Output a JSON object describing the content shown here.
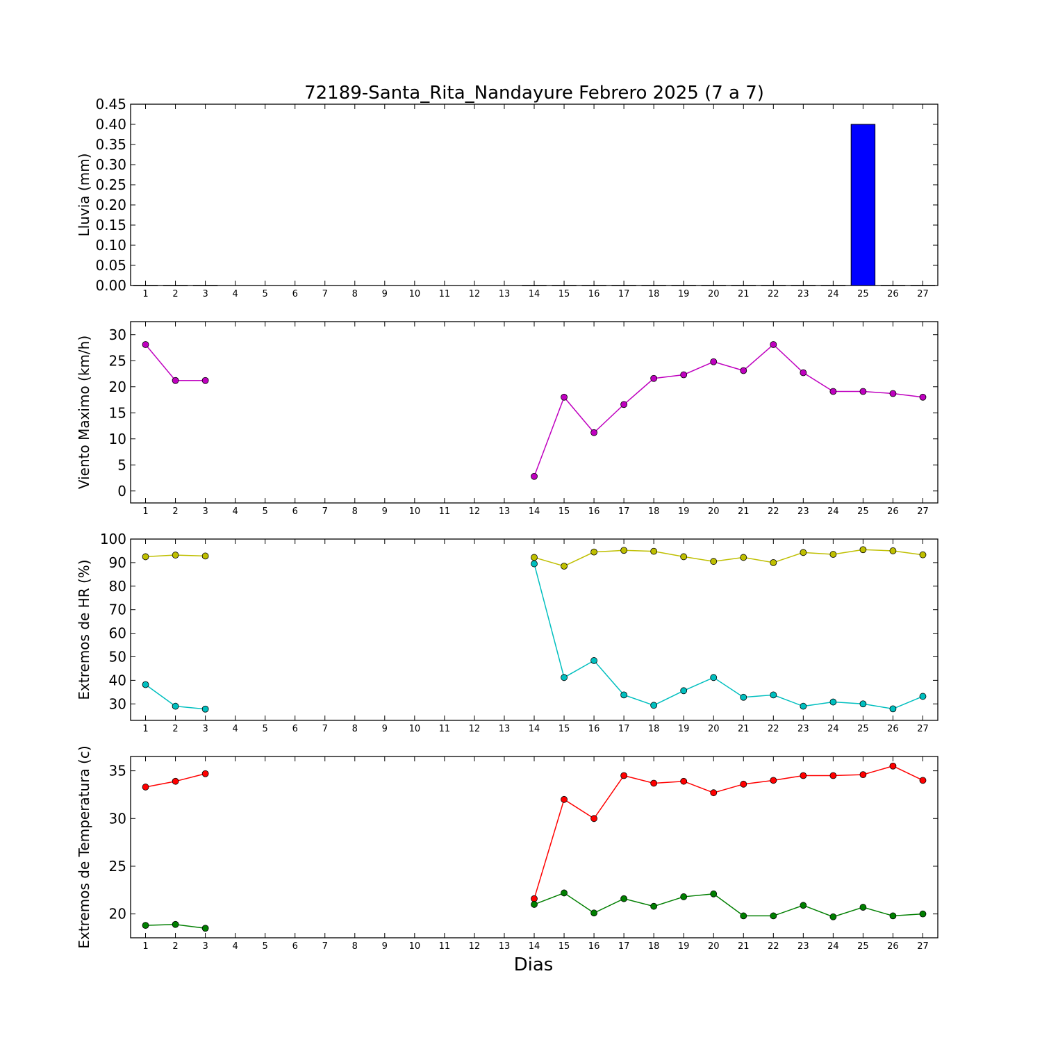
{
  "title": "72189-Santa_Rita_Nandayure Febrero 2025  (7 a 7)",
  "xlabel": "Dias",
  "chart_data": [
    {
      "type": "bar",
      "ylabel": "Lluvia (mm)",
      "xlim": [
        0.5,
        27.5
      ],
      "ylim": [
        0,
        0.45
      ],
      "yticks": [
        "0.00",
        "0.05",
        "0.10",
        "0.15",
        "0.20",
        "0.25",
        "0.30",
        "0.35",
        "0.40",
        "0.45"
      ],
      "ytick_values": [
        0,
        0.05,
        0.1,
        0.15,
        0.2,
        0.25,
        0.3,
        0.35,
        0.4,
        0.45
      ],
      "x": [
        1,
        2,
        3,
        14,
        15,
        16,
        17,
        18,
        19,
        20,
        21,
        22,
        23,
        24,
        25,
        26,
        27
      ],
      "values": [
        0,
        0,
        0,
        0,
        0,
        0,
        0,
        0,
        0,
        0,
        0,
        0,
        0,
        0,
        0.4,
        0,
        0
      ],
      "color": "#0000ff"
    },
    {
      "type": "line",
      "ylabel": "Viento Maximo (km/h)",
      "xlim": [
        0.5,
        27.5
      ],
      "ylim": [
        -2.3,
        32.5
      ],
      "yticks": [
        "0",
        "5",
        "10",
        "15",
        "20",
        "25",
        "30"
      ],
      "ytick_values": [
        0,
        5,
        10,
        15,
        20,
        25,
        30
      ],
      "series": [
        {
          "color": "#bf00bf",
          "points": [
            [
              1,
              28.1
            ],
            [
              2,
              21.2
            ],
            [
              3,
              21.2
            ],
            [
              14,
              2.8
            ],
            [
              15,
              18.0
            ],
            [
              16,
              11.2
            ],
            [
              17,
              16.6
            ],
            [
              18,
              21.6
            ],
            [
              19,
              22.3
            ],
            [
              20,
              24.8
            ],
            [
              21,
              23.1
            ],
            [
              22,
              28.1
            ],
            [
              23,
              22.7
            ],
            [
              24,
              19.1
            ],
            [
              25,
              19.1
            ],
            [
              26,
              18.7
            ],
            [
              27,
              18.0
            ]
          ]
        }
      ]
    },
    {
      "type": "line",
      "ylabel": "Extremos de HR (%)",
      "xlim": [
        0.5,
        27.5
      ],
      "ylim": [
        23,
        100
      ],
      "yticks": [
        "30",
        "40",
        "50",
        "60",
        "70",
        "80",
        "90",
        "100"
      ],
      "ytick_values": [
        30,
        40,
        50,
        60,
        70,
        80,
        90,
        100
      ],
      "series": [
        {
          "color": "#bfbf00",
          "points": [
            [
              1,
              92.5
            ],
            [
              2,
              93.2
            ],
            [
              3,
              92.8
            ],
            [
              14,
              92.2
            ],
            [
              15,
              88.5
            ],
            [
              16,
              94.5
            ],
            [
              17,
              95.2
            ],
            [
              18,
              94.8
            ],
            [
              19,
              92.5
            ],
            [
              20,
              90.5
            ],
            [
              21,
              92.2
            ],
            [
              22,
              90.0
            ],
            [
              23,
              94.3
            ],
            [
              24,
              93.5
            ],
            [
              25,
              95.5
            ],
            [
              26,
              95.0
            ],
            [
              27,
              93.3
            ]
          ]
        },
        {
          "color": "#00bfbf",
          "points": [
            [
              1,
              38.2
            ],
            [
              2,
              29.0
            ],
            [
              3,
              27.8
            ],
            [
              14,
              89.5
            ],
            [
              15,
              41.2
            ],
            [
              16,
              48.4
            ],
            [
              17,
              33.8
            ],
            [
              18,
              29.4
            ],
            [
              19,
              35.6
            ],
            [
              20,
              41.2
            ],
            [
              21,
              32.8
            ],
            [
              22,
              33.8
            ],
            [
              23,
              29.0
            ],
            [
              24,
              30.8
            ],
            [
              25,
              30.0
            ],
            [
              26,
              27.9
            ],
            [
              27,
              33.2
            ]
          ]
        }
      ]
    },
    {
      "type": "line",
      "ylabel": "Extremos de Temperatura (c)",
      "xlim": [
        0.5,
        27.5
      ],
      "ylim": [
        17.5,
        36.5
      ],
      "yticks": [
        "20",
        "25",
        "30",
        "35"
      ],
      "ytick_values": [
        20,
        25,
        30,
        35
      ],
      "series": [
        {
          "color": "#ff0000",
          "points": [
            [
              1,
              33.3
            ],
            [
              2,
              33.9
            ],
            [
              3,
              34.7
            ],
            [
              14,
              21.6
            ],
            [
              15,
              32.0
            ],
            [
              16,
              30.0
            ],
            [
              17,
              34.5
            ],
            [
              18,
              33.7
            ],
            [
              19,
              33.9
            ],
            [
              20,
              32.7
            ],
            [
              21,
              33.6
            ],
            [
              22,
              34.0
            ],
            [
              23,
              34.5
            ],
            [
              24,
              34.5
            ],
            [
              25,
              34.6
            ],
            [
              26,
              35.5
            ],
            [
              27,
              34.0
            ]
          ]
        },
        {
          "color": "#007f00",
          "points": [
            [
              1,
              18.8
            ],
            [
              2,
              18.9
            ],
            [
              3,
              18.5
            ],
            [
              14,
              21.0
            ],
            [
              15,
              22.2
            ],
            [
              16,
              20.1
            ],
            [
              17,
              21.6
            ],
            [
              18,
              20.8
            ],
            [
              19,
              21.8
            ],
            [
              20,
              22.1
            ],
            [
              21,
              19.8
            ],
            [
              22,
              19.8
            ],
            [
              23,
              20.9
            ],
            [
              24,
              19.7
            ],
            [
              25,
              20.7
            ],
            [
              26,
              19.8
            ],
            [
              27,
              20.0
            ]
          ]
        }
      ]
    }
  ]
}
